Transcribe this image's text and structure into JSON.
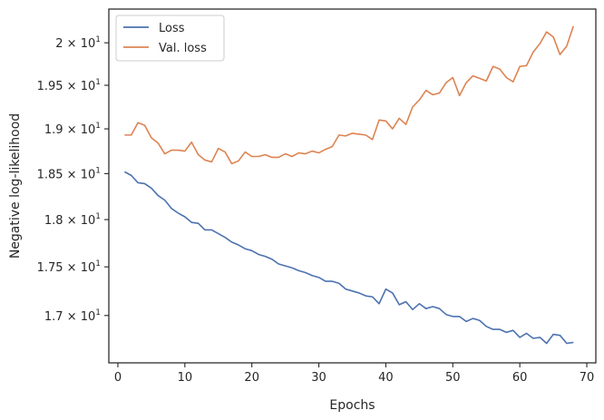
{
  "chart_data": {
    "type": "line",
    "xlabel": "Epochs",
    "ylabel": "Negative log-likelihood",
    "xlim": [
      -1.35,
      71.35
    ],
    "ylim": [
      16.527,
      20.406
    ],
    "yscale": "log",
    "grid": false,
    "legend_position": "top-left",
    "x_ticks": [
      {
        "value": 0,
        "label": "0"
      },
      {
        "value": 10,
        "label": "10"
      },
      {
        "value": 20,
        "label": "20"
      },
      {
        "value": 30,
        "label": "30"
      },
      {
        "value": 40,
        "label": "40"
      },
      {
        "value": 50,
        "label": "50"
      },
      {
        "value": 60,
        "label": "60"
      },
      {
        "value": 70,
        "label": "70"
      }
    ],
    "y_ticks": [
      {
        "value": 17.0,
        "base": "1.7 × 10",
        "exp": "1"
      },
      {
        "value": 17.5,
        "base": "1.75 × 10",
        "exp": "1"
      },
      {
        "value": 18.0,
        "base": "1.8 × 10",
        "exp": "1"
      },
      {
        "value": 18.5,
        "base": "1.85 × 10",
        "exp": "1"
      },
      {
        "value": 19.0,
        "base": "1.9 × 10",
        "exp": "1"
      },
      {
        "value": 19.5,
        "base": "1.95 × 10",
        "exp": "1"
      },
      {
        "value": 20.0,
        "base": "2 × 10",
        "exp": "1"
      }
    ],
    "series": [
      {
        "name": "Loss",
        "color": "#4c72b0",
        "x": [
          1,
          2,
          3,
          4,
          5,
          6,
          7,
          8,
          9,
          10,
          11,
          12,
          13,
          14,
          15,
          16,
          17,
          18,
          19,
          20,
          21,
          22,
          23,
          24,
          25,
          26,
          27,
          28,
          29,
          30,
          31,
          32,
          33,
          34,
          35,
          36,
          37,
          38,
          39,
          40,
          41,
          42,
          43,
          44,
          45,
          46,
          47,
          48,
          49,
          50,
          51,
          52,
          53,
          54,
          55,
          56,
          57,
          58,
          59,
          60,
          61,
          62,
          63,
          64,
          65,
          66,
          67,
          68
        ],
        "y": [
          18.52,
          18.48,
          18.4,
          18.39,
          18.34,
          18.26,
          18.21,
          18.12,
          18.07,
          18.03,
          17.97,
          17.96,
          17.89,
          17.89,
          17.85,
          17.81,
          17.76,
          17.73,
          17.69,
          17.67,
          17.63,
          17.61,
          17.58,
          17.53,
          17.51,
          17.49,
          17.46,
          17.44,
          17.41,
          17.39,
          17.35,
          17.35,
          17.33,
          17.27,
          17.25,
          17.23,
          17.2,
          17.19,
          17.12,
          17.27,
          17.23,
          17.11,
          17.14,
          17.06,
          17.12,
          17.07,
          17.09,
          17.07,
          17.01,
          16.99,
          16.99,
          16.94,
          16.97,
          16.95,
          16.89,
          16.86,
          16.86,
          16.83,
          16.85,
          16.78,
          16.82,
          16.77,
          16.78,
          16.72,
          16.81,
          16.8,
          16.72,
          16.73
        ]
      },
      {
        "name": "Val. loss",
        "color": "#dd8452",
        "x": [
          1,
          2,
          3,
          4,
          5,
          6,
          7,
          8,
          9,
          10,
          11,
          12,
          13,
          14,
          15,
          16,
          17,
          18,
          19,
          20,
          21,
          22,
          23,
          24,
          25,
          26,
          27,
          28,
          29,
          30,
          31,
          32,
          33,
          34,
          35,
          36,
          37,
          38,
          39,
          40,
          41,
          42,
          43,
          44,
          45,
          46,
          47,
          48,
          49,
          50,
          51,
          52,
          53,
          54,
          55,
          56,
          57,
          58,
          59,
          60,
          61,
          62,
          63,
          64,
          65,
          66,
          67,
          68
        ],
        "y": [
          18.93,
          18.93,
          19.07,
          19.04,
          18.9,
          18.84,
          18.72,
          18.76,
          18.76,
          18.75,
          18.85,
          18.71,
          18.65,
          18.63,
          18.78,
          18.74,
          18.61,
          18.64,
          18.74,
          18.69,
          18.69,
          18.71,
          18.68,
          18.68,
          18.72,
          18.69,
          18.73,
          18.72,
          18.75,
          18.73,
          18.77,
          18.8,
          18.93,
          18.92,
          18.95,
          18.94,
          18.93,
          18.88,
          19.1,
          19.09,
          19.0,
          19.12,
          19.05,
          19.25,
          19.33,
          19.44,
          19.39,
          19.41,
          19.53,
          19.59,
          19.38,
          19.53,
          19.61,
          19.58,
          19.55,
          19.72,
          19.69,
          19.59,
          19.54,
          19.72,
          19.73,
          19.89,
          19.99,
          20.13,
          20.07,
          19.86,
          19.96,
          20.2
        ]
      }
    ]
  }
}
